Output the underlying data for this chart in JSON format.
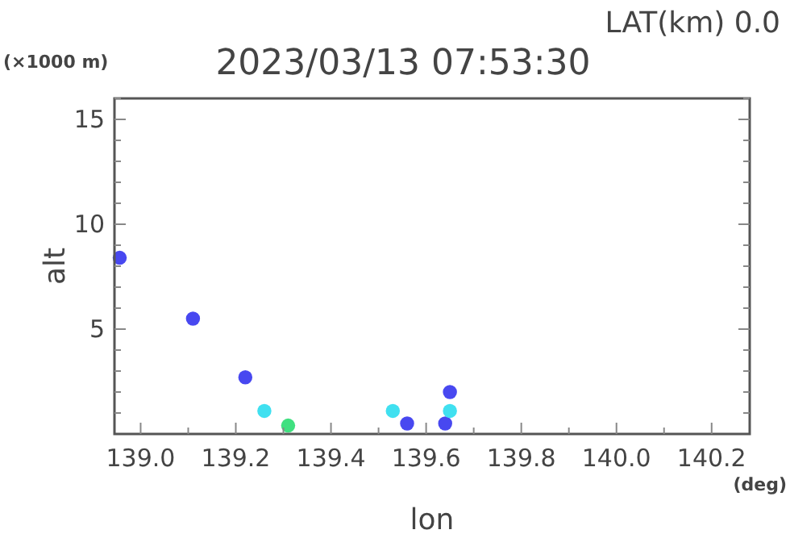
{
  "chart_data": {
    "type": "scatter",
    "title": "2023/03/13 07:53:30",
    "subtitle": "LAT(km) 0.0",
    "xlabel": "lon",
    "ylabel": "alt",
    "annotations": [
      "(×1000 m)",
      "(deg)"
    ],
    "x": [
      138.956,
      139.11,
      139.22,
      139.26,
      139.31,
      139.53,
      139.56,
      139.64,
      139.65,
      139.65
    ],
    "values": [
      8.4,
      5.5,
      2.7,
      1.1,
      0.4,
      1.1,
      0.5,
      0.5,
      1.1,
      2.0
    ],
    "colors": [
      "#4848f0",
      "#4848f0",
      "#4848f0",
      "#40e0f0",
      "#40e080",
      "#40e0f0",
      "#4848f0",
      "#4848f0",
      "#40e0f0",
      "#4848f0"
    ],
    "marker": "circle",
    "grid": false,
    "xlim": [
      138.945,
      140.28
    ],
    "ylim": [
      0,
      16
    ],
    "xticks": [
      {
        "value": 139,
        "label": "139.0"
      },
      {
        "value": 139.1,
        "label": null
      },
      139.2,
      {
        "value": 139.3,
        "label": null
      },
      139.4,
      {
        "value": 139.5,
        "label": null
      },
      139.6,
      {
        "value": 139.7,
        "label": null
      },
      139.8,
      {
        "value": 139.9,
        "label": null
      },
      {
        "value": 140,
        "label": "140.0"
      },
      {
        "value": 140.1,
        "label": null
      },
      140.2
    ],
    "yticks": [
      {
        "value": 1,
        "label": null
      },
      {
        "value": 2,
        "label": null
      },
      {
        "value": 3,
        "label": null
      },
      {
        "value": 4,
        "label": null
      },
      5,
      {
        "value": 6,
        "label": null
      },
      {
        "value": 7,
        "label": null
      },
      {
        "value": 8,
        "label": null
      },
      {
        "value": 9,
        "label": null
      },
      10,
      {
        "value": 11,
        "label": null
      },
      {
        "value": 12,
        "label": null
      },
      {
        "value": 13,
        "label": null
      },
      {
        "value": 14,
        "label": null
      },
      15,
      {
        "value": 16,
        "label": null
      }
    ]
  }
}
